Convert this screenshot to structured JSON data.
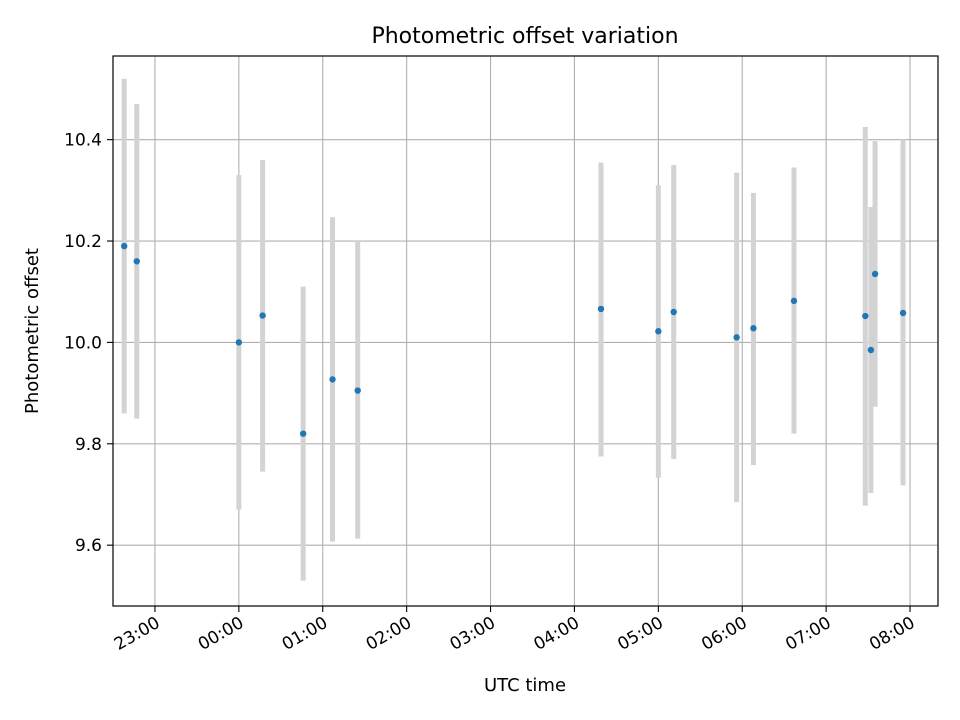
{
  "chart_data": {
    "type": "scatter",
    "title": "Photometric offset variation",
    "xlabel": "UTC time",
    "ylabel": "Photometric offset",
    "x_range": [
      "22:30",
      "08:20"
    ],
    "ylim": [
      9.48,
      10.565
    ],
    "x_ticks": [
      "23:00",
      "00:00",
      "01:00",
      "02:00",
      "03:00",
      "04:00",
      "05:00",
      "06:00",
      "07:00",
      "08:00"
    ],
    "y_ticks": [
      "9.6",
      "9.8",
      "10.0",
      "10.2",
      "10.4"
    ],
    "grid": true,
    "marker_color": "#1f77b4",
    "errorbar_color": "#d3d3d3",
    "points": [
      {
        "t": "22:38",
        "y": 10.19,
        "err_low": 9.86,
        "err_high": 10.52
      },
      {
        "t": "22:47",
        "y": 10.16,
        "err_low": 9.85,
        "err_high": 10.47
      },
      {
        "t": "00:00",
        "y": 10.0,
        "err_low": 9.67,
        "err_high": 10.33
      },
      {
        "t": "00:17",
        "y": 10.053,
        "err_low": 9.745,
        "err_high": 10.36
      },
      {
        "t": "00:46",
        "y": 9.82,
        "err_low": 9.53,
        "err_high": 10.11
      },
      {
        "t": "01:07",
        "y": 9.927,
        "err_low": 9.607,
        "err_high": 10.247
      },
      {
        "t": "01:25",
        "y": 9.905,
        "err_low": 9.613,
        "err_high": 10.2
      },
      {
        "t": "04:19",
        "y": 10.066,
        "err_low": 9.775,
        "err_high": 10.355
      },
      {
        "t": "05:00",
        "y": 10.022,
        "err_low": 9.733,
        "err_high": 10.31
      },
      {
        "t": "05:11",
        "y": 10.06,
        "err_low": 9.77,
        "err_high": 10.35
      },
      {
        "t": "05:56",
        "y": 10.01,
        "err_low": 9.685,
        "err_high": 10.335
      },
      {
        "t": "06:08",
        "y": 10.028,
        "err_low": 9.758,
        "err_high": 10.295
      },
      {
        "t": "06:37",
        "y": 10.082,
        "err_low": 9.82,
        "err_high": 10.345
      },
      {
        "t": "07:28",
        "y": 10.052,
        "err_low": 9.678,
        "err_high": 10.425
      },
      {
        "t": "07:32",
        "y": 9.985,
        "err_low": 9.703,
        "err_high": 10.267
      },
      {
        "t": "07:35",
        "y": 10.135,
        "err_low": 9.873,
        "err_high": 10.397
      },
      {
        "t": "07:55",
        "y": 10.058,
        "err_low": 9.718,
        "err_high": 10.4
      }
    ]
  }
}
